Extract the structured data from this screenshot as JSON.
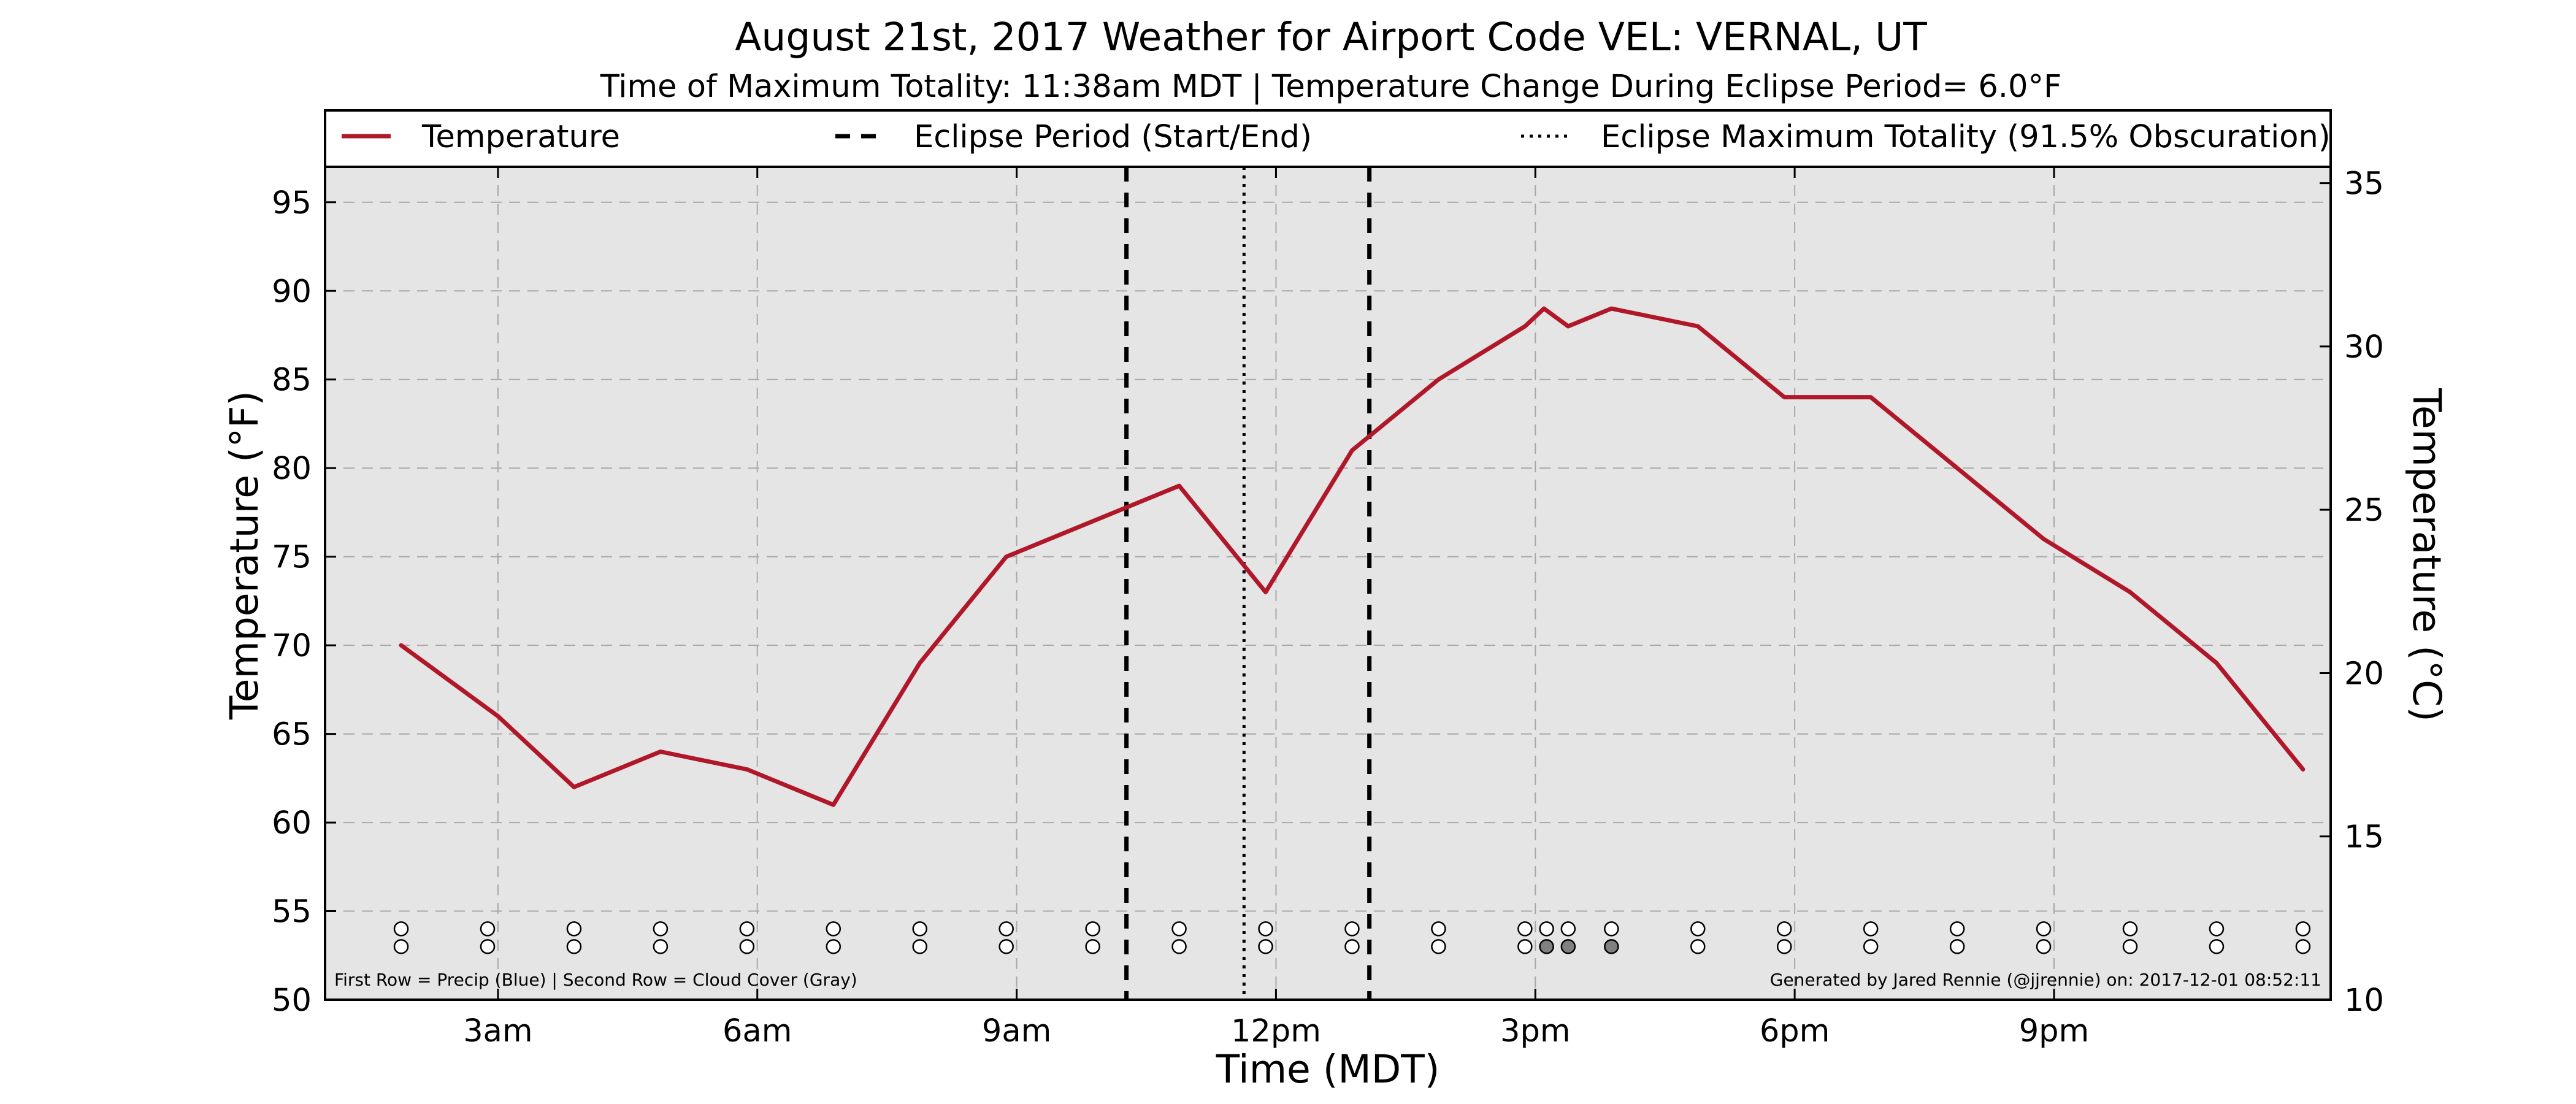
{
  "colors": {
    "temperature_line": "#b0182a",
    "plot_background": "#e5e5e5",
    "grid": "#a8a8a8",
    "eclipse_lines": "#000000",
    "cloud_cover_filled": "#808080"
  },
  "chart_data": {
    "type": "line",
    "title": "August 21st, 2017 Weather for Airport Code VEL: VERNAL, UT",
    "subtitle": "Time of Maximum Totality: 11:38am MDT | Temperature Change During Eclipse Period= 6.0°F",
    "xlabel": "Time (MDT)",
    "ylabel": "Temperature (°F)",
    "ylabel_right": "Temperature (°C)",
    "x_unit": "hour of day (MDT)",
    "xlim": [
      1.0,
      24.2
    ],
    "ylim": [
      50,
      97
    ],
    "ylim_right": [
      10,
      35.5
    ],
    "x_ticks": [
      {
        "value": 3,
        "label": "3am"
      },
      {
        "value": 6,
        "label": "6am"
      },
      {
        "value": 9,
        "label": "9am"
      },
      {
        "value": 12,
        "label": "12pm"
      },
      {
        "value": 15,
        "label": "3pm"
      },
      {
        "value": 18,
        "label": "6pm"
      },
      {
        "value": 21,
        "label": "9pm"
      }
    ],
    "y_ticks": [
      {
        "value": 50,
        "label": "50"
      },
      {
        "value": 55,
        "label": "55"
      },
      {
        "value": 60,
        "label": "60"
      },
      {
        "value": 65,
        "label": "65"
      },
      {
        "value": 70,
        "label": "70"
      },
      {
        "value": 75,
        "label": "75"
      },
      {
        "value": 80,
        "label": "80"
      },
      {
        "value": 85,
        "label": "85"
      },
      {
        "value": 90,
        "label": "90"
      },
      {
        "value": 95,
        "label": "95"
      }
    ],
    "y_ticks_right": [
      {
        "value": 10,
        "label": "10"
      },
      {
        "value": 15,
        "label": "15"
      },
      {
        "value": 20,
        "label": "20"
      },
      {
        "value": 25,
        "label": "25"
      },
      {
        "value": 30,
        "label": "30"
      },
      {
        "value": 35,
        "label": "35"
      }
    ],
    "grid": true,
    "legend_position": "top",
    "legend": [
      {
        "label": "Temperature",
        "style": "solid"
      },
      {
        "label": "Eclipse Period (Start/End)",
        "style": "dashed"
      },
      {
        "label": "Eclipse Maximum Totality (91.5% Obscuration)",
        "style": "dotted"
      }
    ],
    "series": [
      {
        "name": "Temperature",
        "x": [
          1.88,
          3.0,
          3.88,
          4.88,
          5.88,
          6.88,
          7.88,
          8.88,
          9.88,
          10.88,
          11.88,
          12.88,
          13.88,
          14.88,
          15.1,
          15.38,
          15.88,
          16.88,
          17.88,
          18.88,
          19.88,
          20.88,
          21.88,
          22.88,
          23.88
        ],
        "values": [
          70,
          66,
          62,
          64,
          63,
          61,
          69,
          75,
          77,
          79,
          73,
          81,
          85,
          88,
          89,
          88,
          89,
          88,
          84,
          84,
          80,
          76,
          73,
          69,
          63
        ]
      }
    ],
    "eclipse_start_x": 10.27,
    "eclipse_end_x": 13.08,
    "eclipse_max_x": 11.63,
    "precip_row_y": 54,
    "cloud_row_y": 53,
    "indicator_points": [
      {
        "x": 1.88,
        "precip": "none",
        "cloud": "clear"
      },
      {
        "x": 2.88,
        "precip": "none",
        "cloud": "clear"
      },
      {
        "x": 3.88,
        "precip": "none",
        "cloud": "clear"
      },
      {
        "x": 4.88,
        "precip": "none",
        "cloud": "clear"
      },
      {
        "x": 5.88,
        "precip": "none",
        "cloud": "clear"
      },
      {
        "x": 6.88,
        "precip": "none",
        "cloud": "clear"
      },
      {
        "x": 7.88,
        "precip": "none",
        "cloud": "clear"
      },
      {
        "x": 8.88,
        "precip": "none",
        "cloud": "clear"
      },
      {
        "x": 9.88,
        "precip": "none",
        "cloud": "clear"
      },
      {
        "x": 10.88,
        "precip": "none",
        "cloud": "clear"
      },
      {
        "x": 11.88,
        "precip": "none",
        "cloud": "clear"
      },
      {
        "x": 12.88,
        "precip": "none",
        "cloud": "clear"
      },
      {
        "x": 13.88,
        "precip": "none",
        "cloud": "clear"
      },
      {
        "x": 14.88,
        "precip": "none",
        "cloud": "clear"
      },
      {
        "x": 15.13,
        "precip": "none",
        "cloud": "cloudy"
      },
      {
        "x": 15.38,
        "precip": "none",
        "cloud": "cloudy"
      },
      {
        "x": 15.88,
        "precip": "none",
        "cloud": "cloudy"
      },
      {
        "x": 16.88,
        "precip": "none",
        "cloud": "clear"
      },
      {
        "x": 17.88,
        "precip": "none",
        "cloud": "clear"
      },
      {
        "x": 18.88,
        "precip": "none",
        "cloud": "clear"
      },
      {
        "x": 19.88,
        "precip": "none",
        "cloud": "clear"
      },
      {
        "x": 20.88,
        "precip": "none",
        "cloud": "clear"
      },
      {
        "x": 21.88,
        "precip": "none",
        "cloud": "clear"
      },
      {
        "x": 22.88,
        "precip": "none",
        "cloud": "clear"
      },
      {
        "x": 23.88,
        "precip": "none",
        "cloud": "clear"
      }
    ],
    "footnote_left": "First Row = Precip (Blue) | Second Row = Cloud Cover (Gray)",
    "footnote_right": "Generated by Jared Rennie (@jjrennie) on: 2017-12-01 08:52:11"
  }
}
